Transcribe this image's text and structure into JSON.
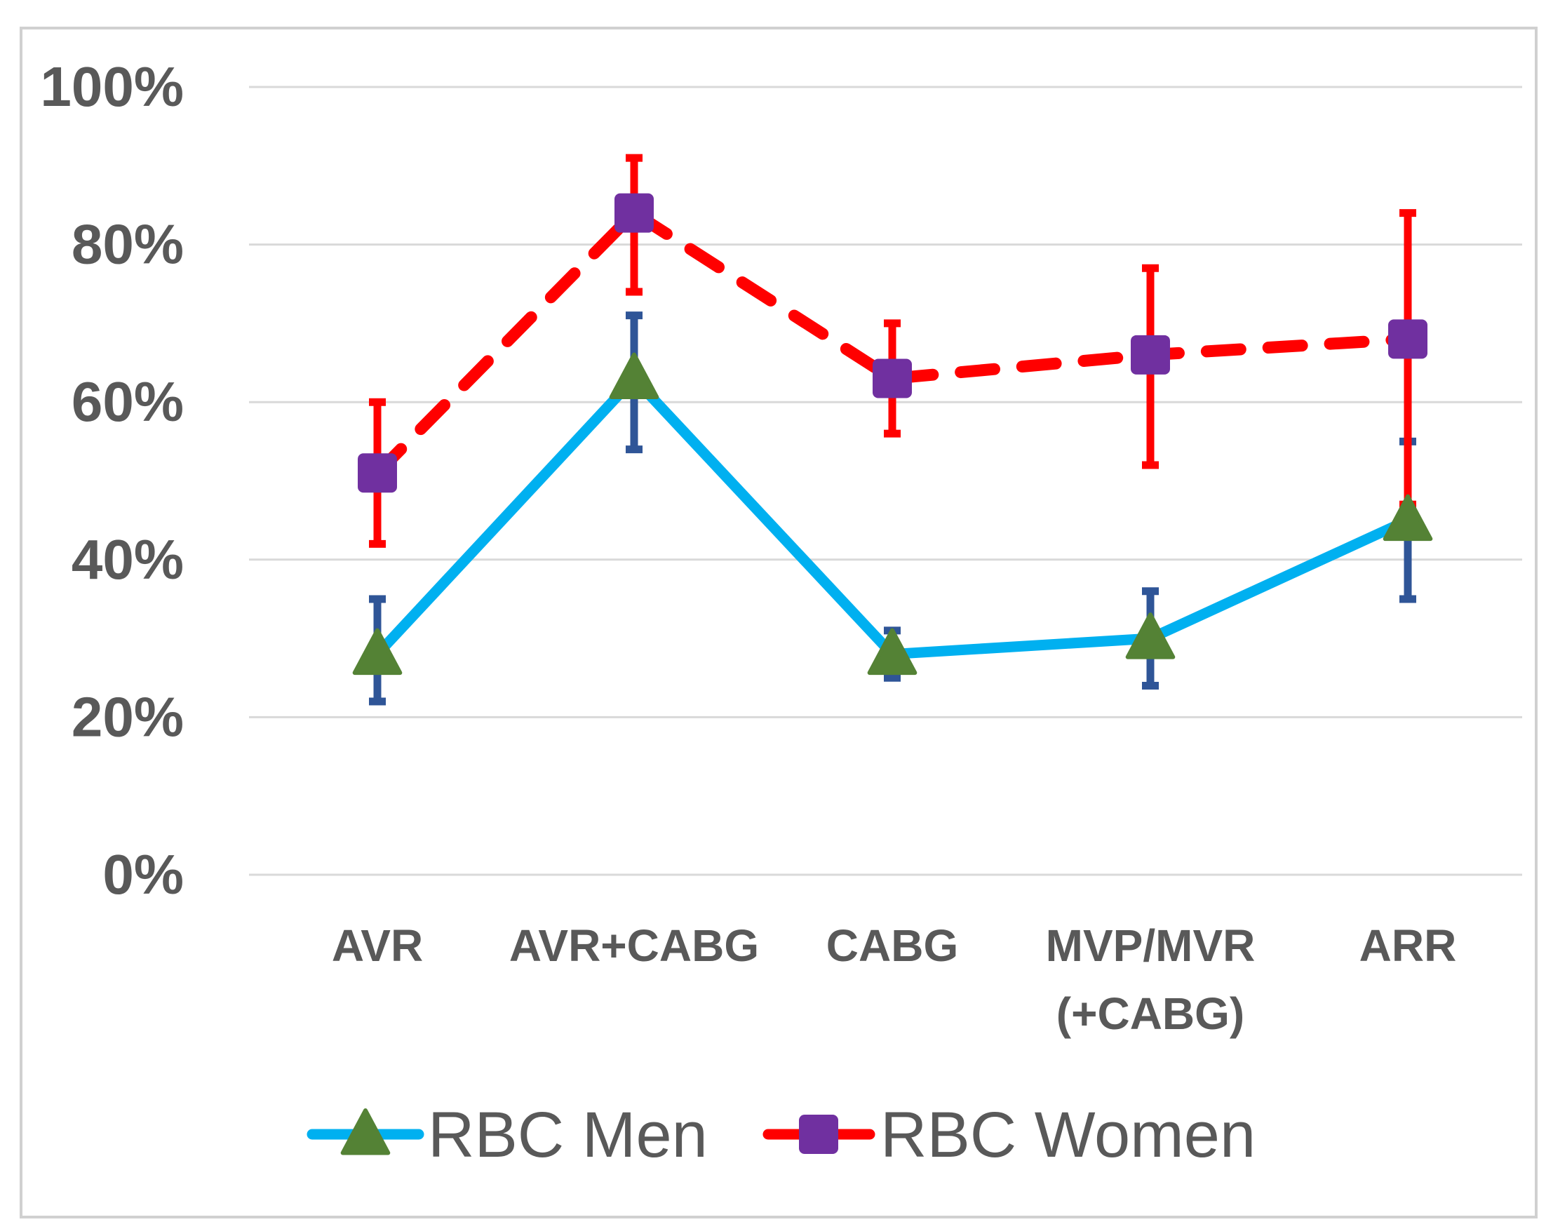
{
  "chart_data": {
    "type": "line",
    "title": "",
    "xlabel": "",
    "ylabel": "",
    "ylim": [
      0,
      100
    ],
    "yticks": [
      "0%",
      "20%",
      "40%",
      "60%",
      "80%",
      "100%"
    ],
    "ytick_values": [
      0,
      20,
      40,
      60,
      80,
      100
    ],
    "grid": true,
    "legend_position": "bottom",
    "categories": [
      [
        "AVR"
      ],
      [
        "AVR+CABG"
      ],
      [
        "CABG"
      ],
      [
        "MVP/MVR",
        "(+CABG)"
      ],
      [
        "ARR"
      ]
    ],
    "series": [
      {
        "name": "RBC Men",
        "values": [
          28,
          63,
          28,
          30,
          45
        ],
        "err_low": [
          22,
          54,
          25,
          24,
          35
        ],
        "err_high": [
          35,
          71,
          31,
          36,
          55
        ],
        "line_color": "#00b0f0",
        "marker_color": "#548235",
        "error_color": "#2f5597",
        "marker": "triangle",
        "dashed": false
      },
      {
        "name": "RBC Women",
        "values": [
          51,
          84,
          63,
          66,
          68
        ],
        "err_low": [
          42,
          74,
          56,
          52,
          47
        ],
        "err_high": [
          60,
          91,
          70,
          77,
          84
        ],
        "line_color": "#ff0000",
        "marker_color": "#7030a0",
        "error_color": "#ff0000",
        "marker": "square",
        "dashed": true
      }
    ]
  }
}
